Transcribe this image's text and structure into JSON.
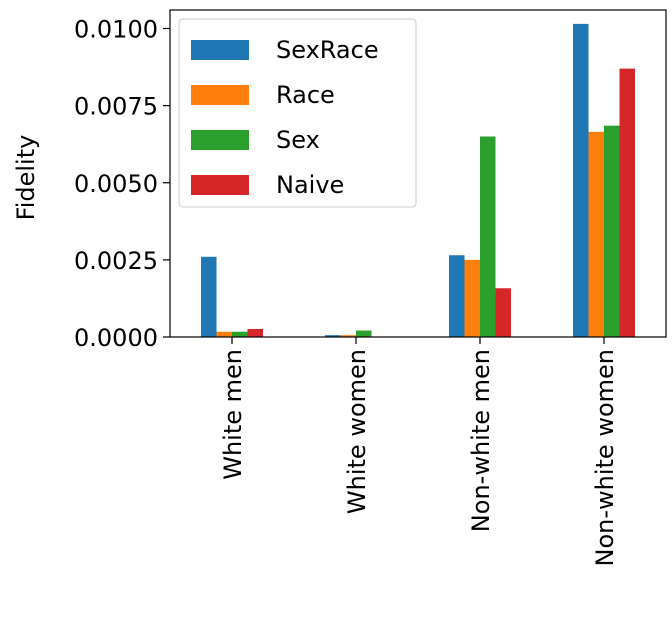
{
  "chart_data": {
    "type": "bar",
    "title": "",
    "xlabel": "",
    "ylabel": "Fidelity",
    "ylim": [
      0,
      0.0106
    ],
    "yticks": [
      "0.0000",
      "0.0025",
      "0.0050",
      "0.0075",
      "0.0100"
    ],
    "ytick_values": [
      0,
      0.0025,
      0.005,
      0.0075,
      0.01
    ],
    "categories": [
      "White men",
      "White women",
      "Non-white men",
      "Non-white women"
    ],
    "series": [
      {
        "name": "SexRace",
        "color": "#1f77b4",
        "values": [
          0.0026,
          6e-05,
          0.00265,
          0.01015
        ]
      },
      {
        "name": "Race",
        "color": "#ff7f0e",
        "values": [
          0.00017,
          6e-05,
          0.0025,
          0.00665
        ]
      },
      {
        "name": "Sex",
        "color": "#2ca02c",
        "values": [
          0.00017,
          0.00021,
          0.0065,
          0.00685
        ]
      },
      {
        "name": "Naive",
        "color": "#d62728",
        "values": [
          0.00026,
          0.0,
          0.00158,
          0.0087
        ]
      }
    ],
    "legend_position": "top-left",
    "grid": false
  }
}
